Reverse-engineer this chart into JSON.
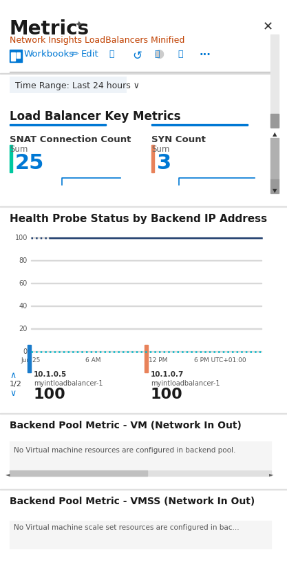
{
  "title": "Metrics",
  "subtitle": "Network Insights LoadBalancers Minified",
  "bg_color": "#ffffff",
  "toolbar_items": [
    "Workbooks",
    "Edit"
  ],
  "time_range_label": "Time Range: Last 24 hours ∨",
  "section1_title": "Load Balancer Key Metrics",
  "metric1_label": "SNAT Connection Count",
  "metric1_sub": "Sum",
  "metric1_value": "25",
  "metric1_bar_color": "#00c8a0",
  "metric2_label": "SYN Count",
  "metric2_sub": "Sum",
  "metric2_value": "3",
  "metric2_bar_color": "#e8825a",
  "section2_title": "Health Probe Status by Backend IP Address",
  "chart_yticks": [
    0,
    20,
    40,
    60,
    80,
    100
  ],
  "chart_xticks": [
    "Jun 25",
    "6 AM",
    "12 PM",
    "6 PM UTC+01:00"
  ],
  "chart_line1_color": "#1a3a6b",
  "chart_line2_color": "#00b8c8",
  "legend_page": "1/2",
  "legend_items": [
    {
      "ip": "10.1.0.5",
      "lb": "myintloadbalancer-1",
      "value": "100",
      "color": "#1a7bcb"
    },
    {
      "ip": "10.1.0.7",
      "lb": "myintloadbalancer-1",
      "value": "100",
      "color": "#e8825a"
    }
  ],
  "section3_title": "Backend Pool Metric - VM (Network In Out)",
  "section3_msg": "No Virtual machine resources are configured in backend pool.",
  "section4_title": "Backend Pool Metric - VMSS (Network In Out)",
  "section4_msg": "No Virtual machine scale set resources are configured in bac...",
  "scrollbar_color": "#b0b0b0",
  "header_color": "#1a1a1a",
  "blue_accent": "#0078d4",
  "orange_subtitle": "#c04000",
  "section_title_color": "#1a1a1a",
  "metric_value_color": "#0078d4",
  "metric_label_color": "#333333",
  "axis_label_color": "#555555",
  "grid_color": "#d8d8d8",
  "msg_color": "#555555",
  "msg_bg": "#f5f5f5"
}
